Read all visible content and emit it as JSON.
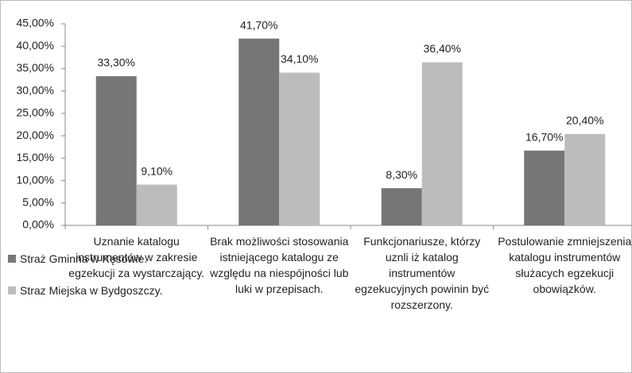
{
  "chart_data": {
    "type": "bar",
    "categories": [
      "Uznanie katalogu instrumentów w zakresie egzekucji za wystarczający.",
      "Brak możliwości stosowania istniejącego katalogu ze względu na niespójności lub luki w przepisach.",
      "Funkcjonariusze, którzy uznli iż katalog instrumentów egzekucyjnych powinin być rozszerzony.",
      "Postulowanie zmniejszenia katalogu instrumentów służacych egzekucji obowiązków."
    ],
    "series": [
      {
        "name": "Straż Gminna w Kęsowie.",
        "color": "#767676",
        "values": [
          33.3,
          41.7,
          8.3,
          16.7
        ],
        "value_labels": [
          "33,30%",
          "41,70%",
          "8,30%",
          "16,70%"
        ]
      },
      {
        "name": "Straz Miejska w Bydgoszczy.",
        "color": "#bcbcbc",
        "values": [
          9.1,
          34.1,
          36.4,
          20.4
        ],
        "value_labels": [
          "9,10%",
          "34,10%",
          "36,40%",
          "20,40%"
        ]
      }
    ],
    "ylim": [
      0,
      45
    ],
    "yticks": [
      {
        "value": 0,
        "label": "0,00%"
      },
      {
        "value": 5,
        "label": "5,00%"
      },
      {
        "value": 10,
        "label": "10,00%"
      },
      {
        "value": 15,
        "label": "15,00%"
      },
      {
        "value": 20,
        "label": "20,00%"
      },
      {
        "value": 25,
        "label": "25,00%"
      },
      {
        "value": 30,
        "label": "30,00%"
      },
      {
        "value": 35,
        "label": "35,00%"
      },
      {
        "value": 40,
        "label": "40,00%"
      },
      {
        "value": 45,
        "label": "45,00%"
      }
    ],
    "grid": false,
    "legend": "bottom-left"
  }
}
